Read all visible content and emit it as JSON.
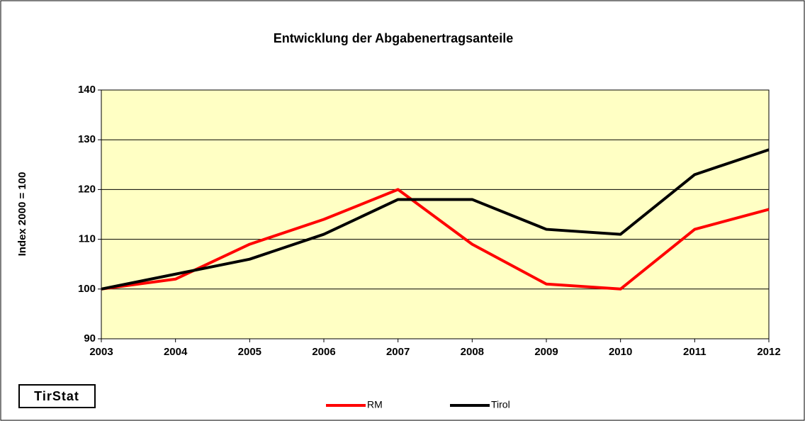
{
  "chart_data": {
    "type": "line",
    "title": "Entwicklung der Abgabenertragsanteile",
    "y_label": "Index 2000 = 100",
    "annotation": "TirStat",
    "x": [
      2003,
      2004,
      2005,
      2006,
      2007,
      2008,
      2009,
      2010,
      2011,
      2012
    ],
    "xlim": [
      2003,
      2012
    ],
    "xticks": [
      2003,
      2004,
      2005,
      2006,
      2007,
      2008,
      2009,
      2010,
      2011,
      2012
    ],
    "ylim": [
      90,
      140
    ],
    "yticks": [
      90,
      100,
      110,
      120,
      130,
      140
    ],
    "grid": true,
    "plot_background": "#ffffc4",
    "legend": "bottom",
    "series": [
      {
        "name": "RM",
        "color": "#ff0000",
        "values": [
          100,
          102,
          109,
          114,
          120,
          109,
          101,
          100,
          112,
          116
        ]
      },
      {
        "name": "Tirol",
        "color": "#000000",
        "values": [
          100,
          103,
          106,
          111,
          118,
          118,
          112,
          111,
          123,
          128
        ]
      }
    ]
  }
}
